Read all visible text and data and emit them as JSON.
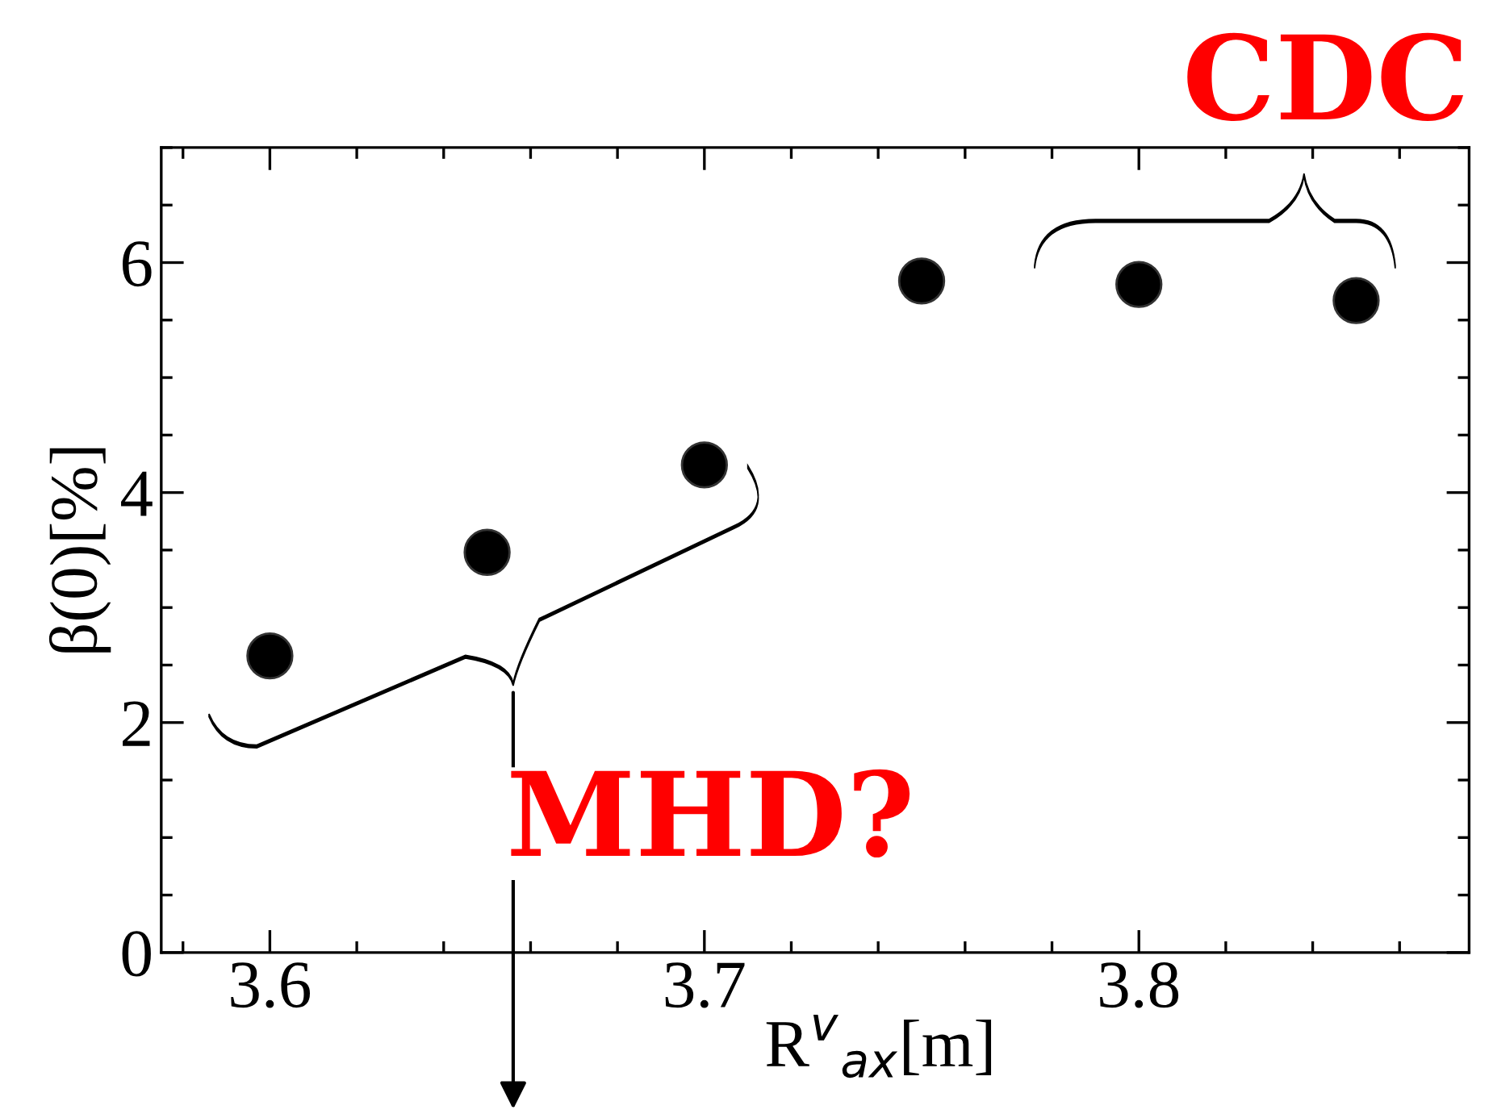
{
  "chart_data": {
    "type": "scatter",
    "xlabel": "R$^{v}$$_{ax}$[m]",
    "ylabel": "β(0)[%]",
    "x": [
      3.6,
      3.65,
      3.7,
      3.75,
      3.8,
      3.85
    ],
    "series": [
      {
        "color": "#000000",
        "values": [
          2.58,
          3.48,
          4.24,
          5.84,
          5.81,
          5.67
        ]
      }
    ],
    "xlim": [
      3.575,
      3.876
    ],
    "ylim": [
      0,
      7
    ],
    "xticks": [
      3.6,
      3.7,
      3.8
    ],
    "yticks": [
      0,
      2,
      4,
      6
    ],
    "marker": "circle",
    "grid": false,
    "legend": false,
    "annotations": [
      "CDC",
      "MHD?"
    ]
  }
}
